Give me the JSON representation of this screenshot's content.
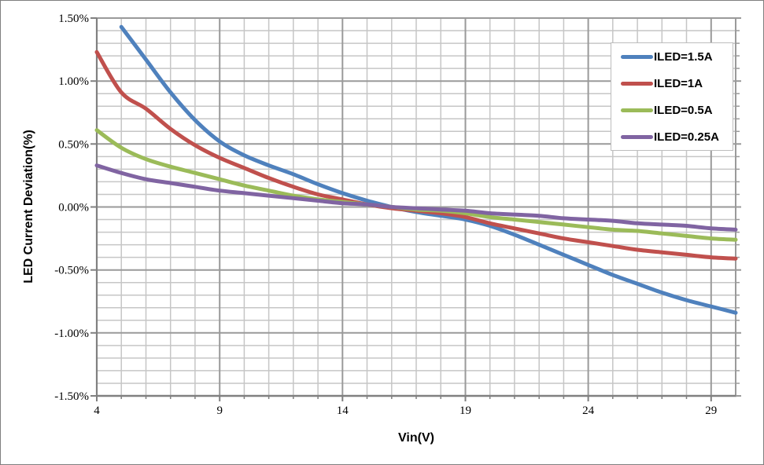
{
  "window": {
    "background": "#FFFFFF",
    "border_color": "#7F7F7F"
  },
  "chart_data": {
    "type": "line",
    "title": "",
    "xlabel": "Vin(V)",
    "ylabel": "LED Current Deviation(%)",
    "xlim": [
      4,
      30
    ],
    "ylim": [
      -1.5,
      1.5
    ],
    "x_minor_unit": 1,
    "y_minor_unit": 0.1,
    "grid": "on",
    "grid_major_color": "#9A9A9A",
    "grid_minor_color": "#C6C6C6",
    "axis_color": "#808080",
    "legend_position": "top-right",
    "x_ticks": [
      4,
      9,
      14,
      19,
      24,
      29
    ],
    "x_tick_labels": [
      "4",
      "9",
      "14",
      "19",
      "24",
      "29"
    ],
    "y_ticks": [
      1.5,
      1.0,
      0.5,
      0.0,
      -0.5,
      -1.0,
      -1.5
    ],
    "y_tick_labels": [
      "1.50%",
      "1.00%",
      "0.50%",
      "0.00%",
      "-0.50%",
      "-1.00%",
      "-1.50%"
    ],
    "value_unit": "percent",
    "x": [
      4,
      5,
      6,
      7,
      8,
      9,
      10,
      11,
      12,
      13,
      14,
      15,
      16,
      17,
      18,
      19,
      20,
      21,
      22,
      23,
      24,
      25,
      26,
      27,
      28,
      29,
      30
    ],
    "series": [
      {
        "name": "ILED=1.5A",
        "color": "#4F81BD",
        "values": [
          null,
          1.43,
          1.17,
          0.91,
          0.69,
          0.52,
          0.41,
          0.33,
          0.26,
          0.18,
          0.11,
          0.05,
          0.0,
          -0.04,
          -0.07,
          -0.1,
          -0.15,
          -0.22,
          -0.3,
          -0.38,
          -0.46,
          -0.54,
          -0.61,
          -0.68,
          -0.74,
          -0.79,
          -0.84
        ]
      },
      {
        "name": "ILED=1A",
        "color": "#C0504D",
        "values": [
          1.23,
          0.91,
          0.78,
          0.62,
          0.49,
          0.39,
          0.31,
          0.23,
          0.16,
          0.1,
          0.06,
          0.02,
          -0.01,
          -0.03,
          -0.05,
          -0.08,
          -0.13,
          -0.17,
          -0.21,
          -0.25,
          -0.28,
          -0.31,
          -0.34,
          -0.36,
          -0.38,
          -0.4,
          -0.41
        ]
      },
      {
        "name": "ILED=0.5A",
        "color": "#9BBB59",
        "values": [
          0.61,
          0.47,
          0.38,
          0.32,
          0.27,
          0.22,
          0.17,
          0.13,
          0.09,
          0.06,
          0.04,
          0.02,
          0.0,
          -0.02,
          -0.03,
          -0.05,
          -0.08,
          -0.1,
          -0.12,
          -0.14,
          -0.16,
          -0.18,
          -0.19,
          -0.21,
          -0.23,
          -0.25,
          -0.26
        ]
      },
      {
        "name": "ILED=0.25A",
        "color": "#8064A2",
        "values": [
          0.33,
          0.27,
          0.22,
          0.19,
          0.16,
          0.13,
          0.11,
          0.09,
          0.07,
          0.05,
          0.03,
          0.02,
          0.0,
          -0.01,
          -0.02,
          -0.03,
          -0.05,
          -0.06,
          -0.07,
          -0.09,
          -0.1,
          -0.11,
          -0.13,
          -0.14,
          -0.15,
          -0.17,
          -0.18
        ]
      }
    ]
  }
}
